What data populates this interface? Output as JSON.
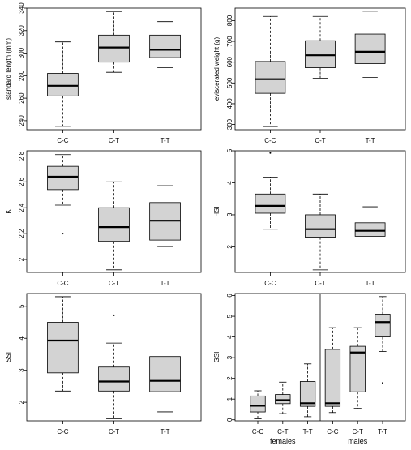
{
  "figure": {
    "box_fill": "#d3d3d3",
    "line_color": "#000000",
    "background": "#ffffff"
  },
  "chart_data": [
    {
      "type": "boxplot",
      "ylabel": "standard length (mm)",
      "categories": [
        "C-C",
        "C-T",
        "T-T"
      ],
      "ylim": [
        232,
        340
      ],
      "yticks": [
        240,
        260,
        280,
        300,
        320,
        340
      ],
      "boxes": [
        {
          "whisker_low": 235,
          "q1": 262,
          "median": 271,
          "q3": 282,
          "whisker_high": 310,
          "outliers": []
        },
        {
          "whisker_low": 283,
          "q1": 292,
          "median": 305,
          "q3": 316,
          "whisker_high": 337,
          "outliers": []
        },
        {
          "whisker_low": 287,
          "q1": 296,
          "median": 303,
          "q3": 316,
          "whisker_high": 328,
          "outliers": []
        }
      ],
      "grid": false,
      "legend": "none"
    },
    {
      "type": "boxplot",
      "ylabel": "eviscerated weight (g)",
      "categories": [
        "C-C",
        "C-T",
        "T-T"
      ],
      "ylim": [
        275,
        860
      ],
      "yticks": [
        300,
        400,
        500,
        600,
        700,
        800
      ],
      "boxes": [
        {
          "whisker_low": 290,
          "q1": 450,
          "median": 518,
          "q3": 603,
          "whisker_high": 820,
          "outliers": []
        },
        {
          "whisker_low": 523,
          "q1": 573,
          "median": 633,
          "q3": 703,
          "whisker_high": 820,
          "outliers": []
        },
        {
          "whisker_low": 527,
          "q1": 593,
          "median": 650,
          "q3": 735,
          "whisker_high": 845,
          "outliers": []
        }
      ],
      "grid": false,
      "legend": "none"
    },
    {
      "type": "boxplot",
      "ylabel": "K",
      "categories": [
        "C-C",
        "C-T",
        "T-T"
      ],
      "ylim": [
        1.9,
        2.84
      ],
      "yticks": [
        2.0,
        2.2,
        2.4,
        2.6,
        2.8
      ],
      "boxes": [
        {
          "whisker_low": 2.42,
          "q1": 2.54,
          "median": 2.64,
          "q3": 2.72,
          "whisker_high": 2.81,
          "outliers": [
            2.2
          ]
        },
        {
          "whisker_low": 1.92,
          "q1": 2.14,
          "median": 2.25,
          "q3": 2.4,
          "whisker_high": 2.6,
          "outliers": []
        },
        {
          "whisker_low": 2.1,
          "q1": 2.15,
          "median": 2.3,
          "q3": 2.44,
          "whisker_high": 2.57,
          "outliers": []
        }
      ],
      "grid": false,
      "legend": "none"
    },
    {
      "type": "boxplot",
      "ylabel": "HSI",
      "categories": [
        "C-C",
        "C-T",
        "T-T"
      ],
      "ylim": [
        1.2,
        5.0
      ],
      "yticks": [
        2,
        3,
        4,
        5
      ],
      "boxes": [
        {
          "whisker_low": 2.55,
          "q1": 3.05,
          "median": 3.28,
          "q3": 3.65,
          "whisker_high": 4.18,
          "outliers": [
            4.93
          ]
        },
        {
          "whisker_low": 1.28,
          "q1": 2.3,
          "median": 2.55,
          "q3": 3.0,
          "whisker_high": 3.65,
          "outliers": []
        },
        {
          "whisker_low": 2.15,
          "q1": 2.33,
          "median": 2.5,
          "q3": 2.75,
          "whisker_high": 3.25,
          "outliers": []
        }
      ],
      "grid": false,
      "legend": "none"
    },
    {
      "type": "boxplot",
      "ylabel": "SSI",
      "categories": [
        "C-C",
        "C-T",
        "T-T"
      ],
      "ylim": [
        1.42,
        5.4
      ],
      "yticks": [
        2,
        3,
        4,
        5
      ],
      "boxes": [
        {
          "whisker_low": 2.35,
          "q1": 2.92,
          "median": 3.93,
          "q3": 4.5,
          "whisker_high": 5.3,
          "outliers": []
        },
        {
          "whisker_low": 1.48,
          "q1": 2.35,
          "median": 2.65,
          "q3": 3.1,
          "whisker_high": 3.85,
          "outliers": [
            4.72
          ]
        },
        {
          "whisker_low": 1.7,
          "q1": 2.33,
          "median": 2.67,
          "q3": 3.43,
          "whisker_high": 4.73,
          "outliers": []
        }
      ],
      "grid": false,
      "legend": "none"
    },
    {
      "type": "boxplot",
      "ylabel": "GSI",
      "categories": [
        "C-C",
        "C-T",
        "T-T",
        "C-C",
        "C-T",
        "T-T"
      ],
      "groups": [
        {
          "label": "females",
          "categories": [
            0,
            1,
            2
          ]
        },
        {
          "label": "males",
          "categories": [
            3,
            4,
            5
          ]
        }
      ],
      "separator_after": 2,
      "ylim": [
        -0.05,
        6.1
      ],
      "yticks": [
        0,
        1,
        2,
        3,
        4,
        5,
        6
      ],
      "boxes": [
        {
          "whisker_low": 0.05,
          "q1": 0.38,
          "median": 0.68,
          "q3": 1.15,
          "whisker_high": 1.4,
          "outliers": []
        },
        {
          "whisker_low": 0.3,
          "q1": 0.78,
          "median": 0.95,
          "q3": 1.22,
          "whisker_high": 1.82,
          "outliers": []
        },
        {
          "whisker_low": 0.15,
          "q1": 0.65,
          "median": 0.8,
          "q3": 1.85,
          "whisker_high": 2.7,
          "outliers": []
        },
        {
          "whisker_low": 0.35,
          "q1": 0.65,
          "median": 0.8,
          "q3": 3.4,
          "whisker_high": 4.45,
          "outliers": []
        },
        {
          "whisker_low": 0.55,
          "q1": 1.35,
          "median": 3.25,
          "q3": 3.55,
          "whisker_high": 4.45,
          "outliers": []
        },
        {
          "whisker_low": 3.3,
          "q1": 4.0,
          "median": 4.72,
          "q3": 5.1,
          "whisker_high": 5.95,
          "outliers": [
            1.78
          ]
        }
      ],
      "grid": false,
      "legend": "none"
    }
  ]
}
